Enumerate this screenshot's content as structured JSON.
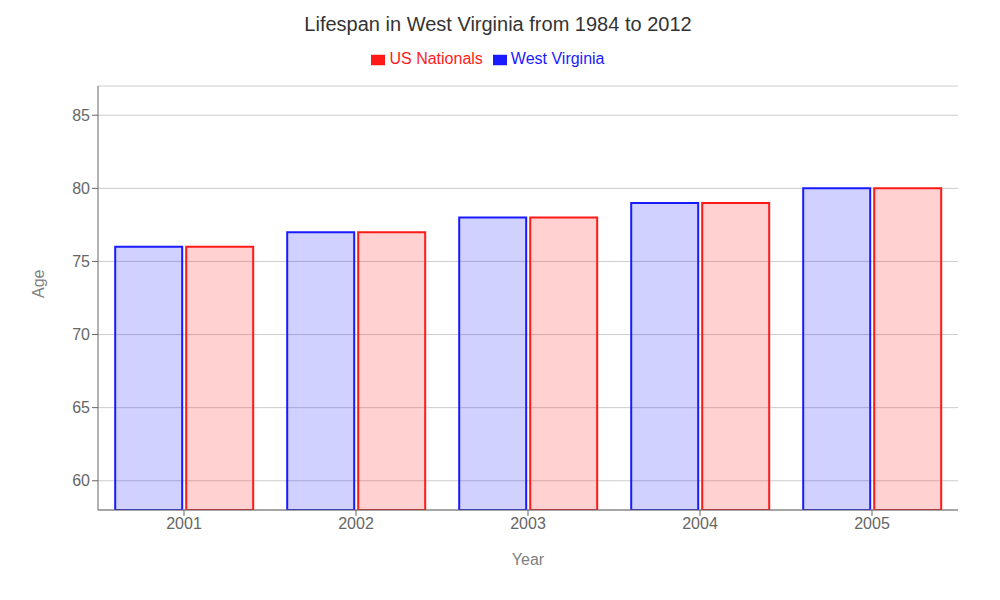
{
  "chart_data": {
    "type": "bar",
    "title": "Lifespan in West Virginia from 1984 to 2012",
    "xlabel": "Year",
    "ylabel": "Age",
    "categories": [
      "2001",
      "2002",
      "2003",
      "2004",
      "2005"
    ],
    "series": [
      {
        "name": "West Virginia",
        "color": "#1a1aff",
        "values": [
          76,
          77,
          78,
          79,
          80
        ]
      },
      {
        "name": "US Nationals",
        "color": "#ff1a1a",
        "values": [
          76,
          77,
          78,
          79,
          80
        ]
      }
    ],
    "ylim": [
      58,
      87
    ],
    "yticks": [
      60,
      65,
      70,
      75,
      80,
      85
    ],
    "grid": true,
    "legend": "top"
  }
}
